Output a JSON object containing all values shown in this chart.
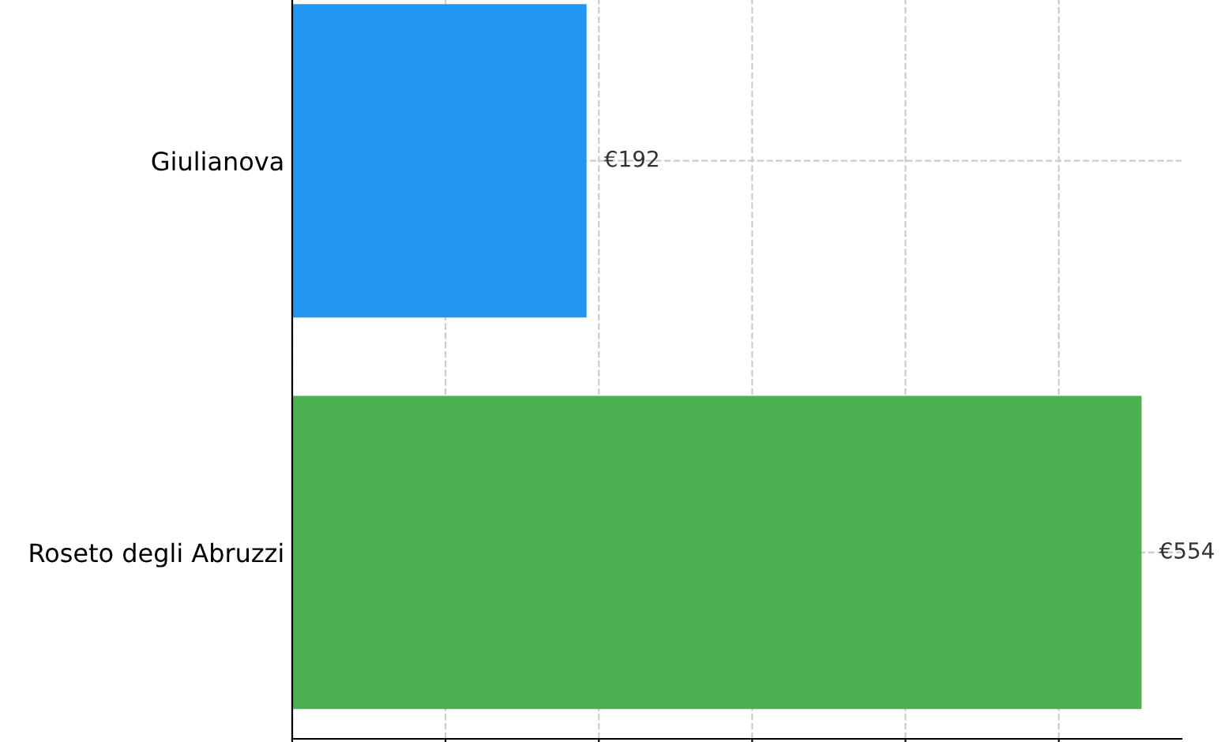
{
  "chart_data": {
    "type": "bar",
    "orientation": "horizontal",
    "categories": [
      "Giulianova",
      "Roseto degli Abruzzi"
    ],
    "values": [
      192,
      554
    ],
    "colors": [
      "#2196f3",
      "#4caf50"
    ],
    "value_labels": [
      "€192",
      "€554"
    ],
    "xlim": [
      0,
      580
    ],
    "xticks": [
      {
        "value": 0,
        "label": null
      },
      {
        "value": 100,
        "label": null
      },
      {
        "value": 200,
        "label": null
      },
      {
        "value": 300,
        "label": null
      },
      {
        "value": 400,
        "label": null
      },
      {
        "value": 500,
        "label": null
      }
    ],
    "tick_labels": "y",
    "grid": true
  }
}
